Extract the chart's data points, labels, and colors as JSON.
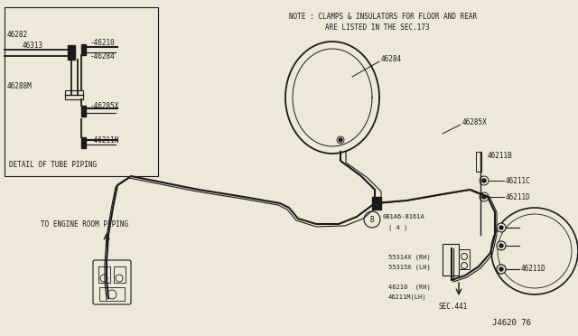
{
  "bg_color": "#ede8d8",
  "line_color": "#1a1a1a",
  "title": "J4620 76",
  "note_line1": "NOTE : CLAMPS & INSULATORS FOR FLOOR AND REAR",
  "note_line2": "ARE LISTED IN THE SEC.173",
  "detail_box_label": "DETAIL OF TUBE PIPING",
  "engine_label": "TO ENGINE ROOM PIPING"
}
